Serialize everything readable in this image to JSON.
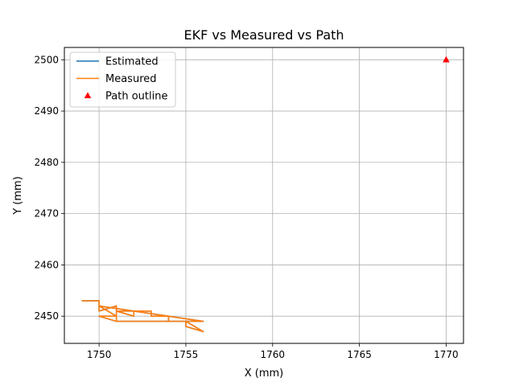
{
  "chart_data": {
    "type": "line",
    "title": "EKF vs Measured vs Path",
    "xlabel": "X (mm)",
    "ylabel": "Y (mm)",
    "xlim": [
      1748,
      1771
    ],
    "ylim": [
      2444.7,
      2502.4
    ],
    "xticks": [
      1750,
      1755,
      1760,
      1765,
      1770
    ],
    "yticks": [
      2450,
      2460,
      2470,
      2480,
      2490,
      2500
    ],
    "grid": true,
    "legend_position": "top-left",
    "series": [
      {
        "name": "Estimated",
        "kind": "line",
        "color": "#1f77b4",
        "x": [
          1749,
          1750,
          1750,
          1751,
          1751,
          1752,
          1752,
          1751,
          1751,
          1753,
          1753,
          1754,
          1754,
          1755,
          1756,
          1755,
          1755,
          1751,
          1750,
          1751,
          1750,
          1756,
          1751,
          1751
        ],
        "y": [
          2453,
          2453,
          2451,
          2452,
          2451,
          2451,
          2450,
          2451,
          2451,
          2451,
          2450,
          2450,
          2449,
          2449,
          2447,
          2448,
          2449,
          2449,
          2450,
          2450,
          2452,
          2449,
          2449,
          2451
        ]
      },
      {
        "name": "Measured",
        "kind": "line",
        "color": "#ff7f0e",
        "x": [
          1749,
          1750,
          1750,
          1751,
          1751,
          1752,
          1752,
          1751,
          1751,
          1753,
          1753,
          1754,
          1754,
          1755,
          1756,
          1755,
          1755,
          1751,
          1750,
          1751,
          1750,
          1756,
          1751,
          1751
        ],
        "y": [
          2453,
          2453,
          2451,
          2452,
          2451,
          2451,
          2450,
          2451,
          2451,
          2451,
          2450,
          2450,
          2449,
          2449,
          2447,
          2448,
          2449,
          2449,
          2450,
          2450,
          2452,
          2449,
          2449,
          2451
        ]
      },
      {
        "name": "Path outline",
        "kind": "marker-triangle",
        "color": "#ff0000",
        "x": [
          1770
        ],
        "y": [
          2500
        ]
      }
    ]
  }
}
